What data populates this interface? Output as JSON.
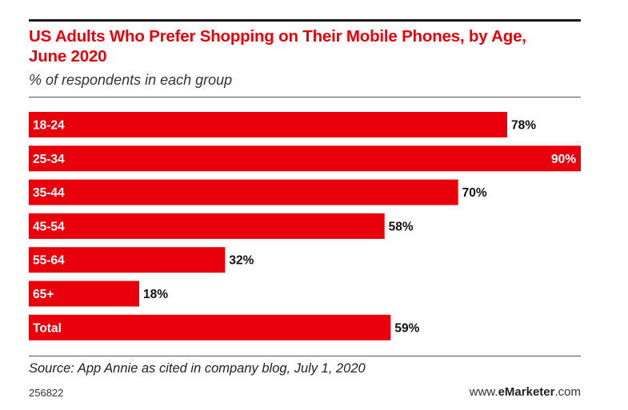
{
  "colors": {
    "bar": "#e8000b",
    "label_inside": "#ffffff",
    "value_outside": "#111111",
    "title": "#e8000b"
  },
  "chart_data": {
    "type": "bar",
    "orientation": "horizontal",
    "title": "US Adults Who Prefer Shopping on Their Mobile Phones, by Age, June 2020",
    "subtitle": "% of respondents in each group",
    "categories": [
      "18-24",
      "25-34",
      "35-44",
      "45-54",
      "55-64",
      "65+",
      "Total"
    ],
    "values": [
      78,
      90,
      70,
      58,
      32,
      18,
      59
    ],
    "value_labels": [
      "78%",
      "90%",
      "70%",
      "58%",
      "32%",
      "18%",
      "59%"
    ],
    "xlim": [
      0,
      90
    ],
    "grid": false,
    "legend": "none"
  },
  "footer": {
    "source": "Source: App Annie as cited in company blog, July 1, 2020",
    "chart_id": "256822",
    "brand_prefix": "www.",
    "brand_bold": "eMarketer",
    "brand_suffix": ".com"
  }
}
